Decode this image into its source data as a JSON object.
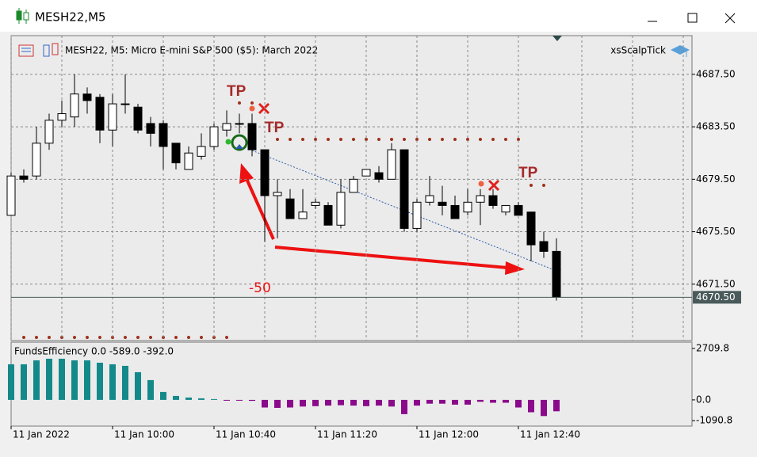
{
  "window": {
    "title": "MESH22,M5"
  },
  "chart_data": [
    {
      "type": "candlestick",
      "title": "MESH22, M5:  Micro E-mini S&P 500 ($5): March 2022",
      "indicator": "xsScalpTick",
      "categories": [
        "11 Jan 2022",
        null,
        null,
        null,
        null,
        null,
        null,
        null,
        "11 Jan 10:00",
        null,
        null,
        null,
        null,
        null,
        null,
        null,
        "11 Jan 10:40",
        null,
        null,
        null,
        null,
        null,
        null,
        null,
        "11 Jan 11:20",
        null,
        null,
        null,
        null,
        null,
        null,
        null,
        "11 Jan 12:00",
        null,
        null,
        null,
        null,
        null,
        null,
        null,
        "11 Jan 12:40",
        null,
        null,
        null
      ],
      "open": [
        4676.75,
        4679.75,
        4679.75,
        4682.25,
        4684,
        4684.25,
        4686,
        4685.75,
        4683.25,
        4685.25,
        4685,
        4683.75,
        4683.75,
        4682.25,
        4680.25,
        4681.25,
        4682,
        4683.25,
        4683.75,
        4683.75,
        4681.75,
        4678.25,
        4678,
        4676.5,
        4677.5,
        4677.5,
        4676,
        4678.5,
        4679.75,
        4680,
        4679.5,
        4681.75,
        4675.75,
        4677.75,
        4677.75,
        4677.5,
        4677,
        4677.75,
        4678.25,
        4677,
        4677.5,
        4677,
        4674.75,
        4674
      ],
      "high": [
        4680,
        4680.25,
        4683.5,
        4684.5,
        4685.5,
        4687.5,
        4686.5,
        4686,
        4686,
        4687.5,
        4685.25,
        4684.25,
        4684,
        4682.25,
        4682,
        4683,
        4683.75,
        4684.75,
        4684.5,
        4684.5,
        4681.75,
        4679.5,
        4678.75,
        4678.75,
        4678,
        4677.75,
        4679.5,
        4679.75,
        4680.25,
        4680.5,
        4682.25,
        4681.75,
        4678,
        4679.75,
        4679,
        4678.25,
        4678.75,
        4678.75,
        4678.75,
        4677.5,
        4677.75,
        4677,
        4675.5,
        4675
      ],
      "low": [
        4676.75,
        4679.25,
        4679.5,
        4681.75,
        4683.5,
        4683.5,
        4684.5,
        4682.25,
        4682,
        4684.5,
        4683,
        4682,
        4680.25,
        4680.25,
        4680.25,
        4681,
        4681.75,
        4682.75,
        4683,
        4681.25,
        4674.75,
        4675,
        4676.5,
        4676.5,
        4677.25,
        4676,
        4675.75,
        4678.5,
        4679.75,
        4679.25,
        4679.5,
        4675.5,
        4675.5,
        4677.5,
        4676.75,
        4676.5,
        4676.75,
        4676,
        4677.25,
        4676.75,
        4676.75,
        4673.25,
        4673.5,
        4670.25
      ],
      "close": [
        4679.75,
        4679.5,
        4682.25,
        4684,
        4684.5,
        4686,
        4685.5,
        4683.25,
        4685.25,
        4685.25,
        4683.25,
        4683,
        4682,
        4680.75,
        4681.5,
        4682,
        4683.5,
        4683.75,
        4683.75,
        4681.75,
        4678.25,
        4678.5,
        4676.5,
        4677,
        4677.75,
        4676,
        4678.5,
        4679.5,
        4680.25,
        4679.5,
        4681.75,
        4675.75,
        4677.75,
        4678.25,
        4677.5,
        4676.5,
        4677.75,
        4678.25,
        4677.5,
        4677.5,
        4676.75,
        4674.5,
        4674,
        4670.5
      ],
      "ylim": [
        4667.2,
        4690.45
      ],
      "yticks": [
        {
          "value": 4687.5,
          "label": "4687.50"
        },
        {
          "value": 4683.5,
          "label": "4683.50"
        },
        {
          "value": 4679.5,
          "label": "4679.50"
        },
        {
          "value": 4675.5,
          "label": "4675.50"
        },
        {
          "value": 4671.5,
          "label": "4671.50"
        }
      ],
      "last_price": {
        "value": 4670.5,
        "label": "4670.50"
      },
      "annotations": [
        "TP",
        "TP",
        "TP",
        "-50"
      ],
      "up_color": "#ffffff",
      "down_color": "#000000",
      "grid": true
    },
    {
      "type": "bar",
      "title": "FundsEfficiency 0.0 -589.0 -392.0",
      "values": [
        1875,
        1875,
        2083,
        2167,
        2167,
        2083,
        2083,
        1958,
        1875,
        1792,
        1458,
        1042,
        417,
        208,
        125,
        83,
        42,
        -20,
        -40,
        -50,
        -400,
        -420,
        -400,
        -350,
        -330,
        -300,
        -280,
        -300,
        -330,
        -300,
        -350,
        -750,
        -300,
        -200,
        -200,
        -250,
        -250,
        -100,
        -150,
        -150,
        -400,
        -650,
        -850,
        -600
      ],
      "ylim": [
        -1380,
        3040
      ],
      "yticks": [
        {
          "value": 2709.8,
          "label": "2709.8"
        },
        {
          "value": 0,
          "label": "0.0"
        },
        {
          "value": -1090.8,
          "label": "-1090.8"
        }
      ],
      "positive_color": "#13898a",
      "negative_color": "#8b0a8b"
    }
  ]
}
